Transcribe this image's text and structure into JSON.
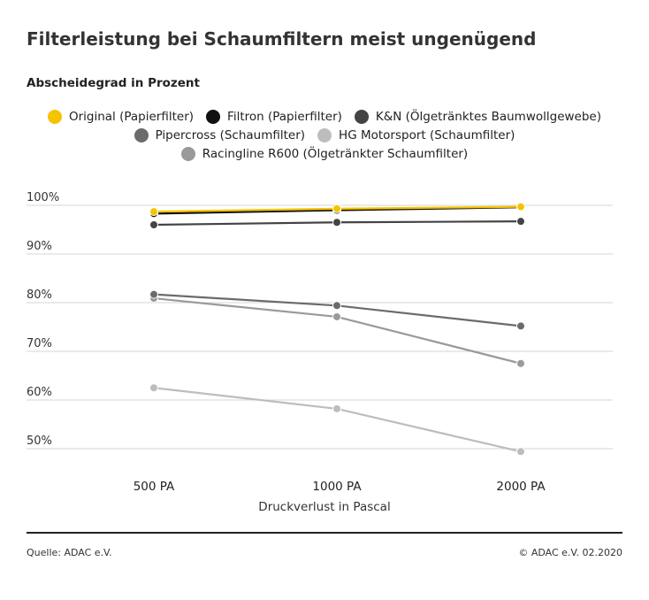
{
  "title": "Filterleistung bei Schaumfiltern meist ungenügend",
  "source": "Quelle: ADAC e.V.",
  "copyright": "© ADAC e.V. 02.2020",
  "chart_data": {
    "type": "line",
    "title": "Filterleistung bei Schaumfiltern meist ungenügend",
    "subtitle": "Abscheidegrad in Prozent",
    "xlabel": "Druckverlust in Pascal",
    "ylabel": "",
    "categories": [
      "500 PA",
      "1000 PA",
      "2000 PA"
    ],
    "ylim": [
      50,
      100
    ],
    "yticks": [
      50,
      60,
      70,
      80,
      90,
      100
    ],
    "ytick_labels": [
      "50%",
      "60%",
      "70%",
      "80%",
      "90%",
      "100%"
    ],
    "grid": true,
    "legend_placement": "top-center",
    "series": [
      {
        "name": "Original (Papierfilter)",
        "color": "#f5c400",
        "values": [
          98.7,
          99.3,
          99.7
        ]
      },
      {
        "name": "Filtron (Papierfilter)",
        "color": "#111111",
        "values": [
          98.3,
          99.0,
          99.6
        ]
      },
      {
        "name": "K&N (Ölgetränktes Baumwollgewebe)",
        "color": "#444444",
        "values": [
          96.0,
          96.5,
          96.7
        ]
      },
      {
        "name": "Pipercross (Schaumfilter)",
        "color": "#6b6b6b",
        "values": [
          81.7,
          79.4,
          75.2
        ]
      },
      {
        "name": "HG Motorsport (Schaumfilter)",
        "color": "#bdbdbd",
        "values": [
          62.5,
          58.2,
          49.4
        ]
      },
      {
        "name": "Racingline R600 (Ölgetränkter Schaumfilter)",
        "color": "#9a9a9a",
        "values": [
          80.9,
          77.1,
          67.5
        ]
      }
    ]
  }
}
